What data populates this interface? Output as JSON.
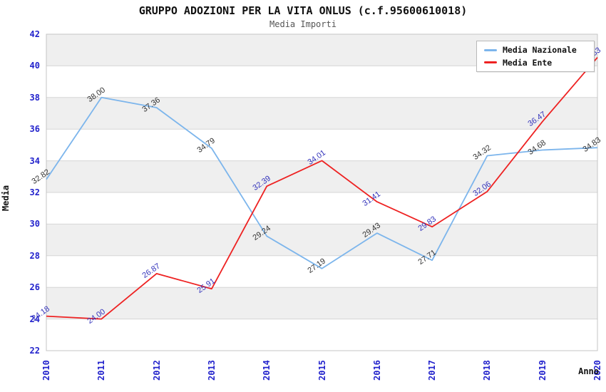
{
  "header": {
    "title": "GRUPPO ADOZIONI PER LA VITA ONLUS (c.f.95600610018)",
    "subtitle": "Media Importi"
  },
  "axes": {
    "y_title": "Media",
    "x_title": "Anno",
    "y_ticks": [
      22,
      24,
      26,
      28,
      30,
      32,
      34,
      36,
      38,
      40,
      42
    ],
    "x_ticks": [
      "2010",
      "2011",
      "2012",
      "2013",
      "2014",
      "2015",
      "2016",
      "2017",
      "2018",
      "2019",
      "2020"
    ]
  },
  "colors": {
    "axis_tick_text": "#2222cc",
    "band_fill": "#efefef",
    "gridline": "#d6d6d6",
    "plot_border": "#c4c4c4",
    "nazionale_line": "#7cb5ec",
    "ente_line": "#ee2222",
    "nazionale_label": "#333333",
    "ente_label": "#3333bb"
  },
  "chart_data": {
    "type": "line",
    "title": "GRUPPO ADOZIONI PER LA VITA ONLUS (c.f.95600610018)",
    "subtitle": "Media Importi",
    "xlabel": "Anno",
    "ylabel": "Media",
    "ylim": [
      22,
      42
    ],
    "ytick_step": 2,
    "grid": true,
    "legend_position": "top-right",
    "categories": [
      "2010",
      "2011",
      "2012",
      "2013",
      "2014",
      "2015",
      "2016",
      "2017",
      "2018",
      "2019",
      "2020"
    ],
    "series": [
      {
        "name": "Media Nazionale",
        "color": "#7cb5ec",
        "label_color": "#333333",
        "values": [
          32.82,
          38.0,
          37.36,
          34.79,
          29.24,
          27.19,
          29.43,
          27.71,
          34.32,
          34.68,
          34.83
        ]
      },
      {
        "name": "Media Ente",
        "color": "#ee2222",
        "label_color": "#3333bb",
        "values": [
          24.18,
          24.0,
          26.87,
          25.91,
          32.39,
          34.01,
          31.41,
          29.83,
          32.06,
          36.47,
          40.53
        ]
      }
    ]
  }
}
